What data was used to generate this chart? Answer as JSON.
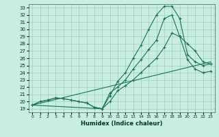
{
  "xlabel": "Humidex (Indice chaleur)",
  "bg_color": "#c8eee0",
  "grid_color": "#a0ccbc",
  "line_color": "#1a7060",
  "xlim": [
    -0.5,
    23.5
  ],
  "ylim": [
    18.5,
    33.5
  ],
  "xticks": [
    0,
    1,
    2,
    3,
    4,
    5,
    6,
    7,
    8,
    9,
    10,
    11,
    12,
    13,
    14,
    15,
    16,
    17,
    18,
    19,
    20,
    21,
    22,
    23
  ],
  "yticks": [
    19,
    20,
    21,
    22,
    23,
    24,
    25,
    26,
    27,
    28,
    29,
    30,
    31,
    32,
    33
  ],
  "line1_x": [
    0,
    1,
    2,
    3,
    4,
    5,
    6,
    7,
    8,
    9,
    10,
    11,
    12,
    13,
    14,
    15,
    16,
    17,
    18,
    19,
    20,
    21,
    22,
    23
  ],
  "line1_y": [
    19.5,
    20.0,
    20.2,
    20.5,
    20.4,
    20.2,
    20.0,
    19.8,
    19.2,
    19.0,
    20.8,
    22.8,
    24.0,
    26.0,
    27.8,
    30.0,
    32.0,
    33.2,
    33.2,
    31.5,
    26.5,
    25.5,
    25.0,
    25.2
  ],
  "line2_x": [
    0,
    1,
    2,
    3,
    4,
    5,
    6,
    7,
    8,
    9,
    10,
    11,
    12,
    13,
    14,
    15,
    16,
    17,
    18,
    19,
    20,
    21,
    22,
    23
  ],
  "line2_y": [
    19.5,
    20.0,
    20.2,
    20.5,
    20.4,
    20.2,
    20.0,
    19.8,
    19.2,
    19.0,
    21.2,
    22.0,
    23.0,
    24.5,
    25.8,
    27.2,
    28.5,
    31.5,
    32.0,
    29.0,
    25.8,
    24.5,
    24.0,
    24.2
  ],
  "line3_x": [
    0,
    9,
    10,
    11,
    12,
    13,
    14,
    15,
    16,
    17,
    18,
    19,
    20,
    21,
    22,
    23
  ],
  "line3_y": [
    19.5,
    19.0,
    20.0,
    21.5,
    22.2,
    23.0,
    24.0,
    25.0,
    26.0,
    27.5,
    29.5,
    29.0,
    28.0,
    27.0,
    25.5,
    25.2
  ],
  "line4_x": [
    0,
    23
  ],
  "line4_y": [
    19.5,
    25.5
  ]
}
